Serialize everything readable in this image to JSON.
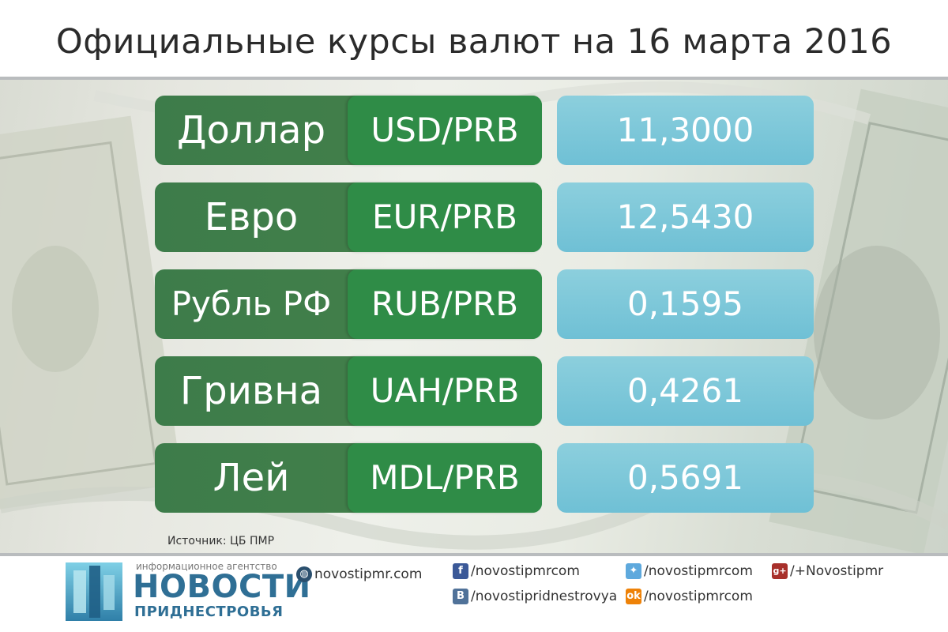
{
  "title": "Официальные курсы валют на 16 марта 2016",
  "rates": [
    {
      "name": "Доллар",
      "code": "USD/PRB",
      "value": "11,3000"
    },
    {
      "name": "Евро",
      "code": "EUR/PRB",
      "value": "12,5430"
    },
    {
      "name": "Рубль РФ",
      "code": "RUB/PRB",
      "value": "0,1595"
    },
    {
      "name": "Гривна",
      "code": "UAH/PRB",
      "value": "0,4261"
    },
    {
      "name": "Лей",
      "code": "MDL/PRB",
      "value": "0,5691"
    }
  ],
  "source": "Источник: ЦБ ПМР",
  "footer": {
    "agency_small": "информационное агентство",
    "agency_big": "НОВОСТИ",
    "agency_sub": "ПРИДНЕСТРОВЬЯ",
    "site": "novostipmr.com",
    "facebook": "/novostipmrcom",
    "vk": "/novostipridnestrovya",
    "twitter": "/novostipmrcom",
    "odnoklassniki": "/novostipmrcom",
    "googleplus": "/+Novostipmr",
    "icons": {
      "site": "globe-icon",
      "facebook": "facebook-icon",
      "vk": "vk-icon",
      "twitter": "twitter-icon",
      "odnoklassniki": "odnoklassniki-icon",
      "googleplus": "google-plus-icon"
    }
  },
  "colors": {
    "pill_green": "#3d7c4a",
    "code_green": "#2f8c47",
    "value_blue": "#7cc7da",
    "logo_blue": "#2f6f95"
  }
}
